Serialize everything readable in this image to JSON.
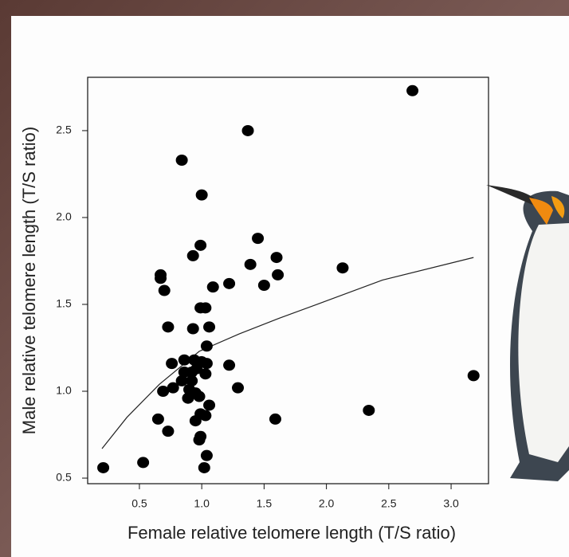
{
  "chart_data": {
    "type": "scatter",
    "xlabel": "Female relative telomere length (T/S ratio)",
    "ylabel": "Male relative telomere length (T/S ratio)",
    "xlim": [
      0.085,
      3.3
    ],
    "ylim": [
      0.468,
      2.807
    ],
    "xticks": [
      0.5,
      {
        "value": 1,
        "label": "1.0"
      },
      1.5,
      {
        "value": 2,
        "label": "2.0"
      },
      2.5,
      {
        "value": 3,
        "label": "3.0"
      }
    ],
    "yticks": [
      0.5,
      {
        "value": 1,
        "label": "1.0"
      },
      1.5,
      {
        "value": 2,
        "label": "2.0"
      },
      2.5
    ],
    "point_color": "#000000",
    "curve_color": "#222222",
    "points": {
      "x": [
        0.21,
        0.53,
        2.69,
        1.37,
        0.84,
        1.0,
        1.45,
        0.99,
        0.93,
        1.6,
        1.39,
        2.13,
        0.67,
        1.61,
        0.67,
        1.22,
        1.5,
        1.09,
        0.7,
        0.99,
        1.03,
        0.73,
        0.93,
        1.06,
        1.04,
        0.86,
        0.94,
        0.76,
        1.0,
        1.04,
        1.22,
        0.86,
        0.92,
        0.96,
        1.03,
        0.84,
        0.92,
        3.18,
        0.77,
        1.29,
        0.69,
        0.9,
        0.95,
        0.89,
        0.98,
        1.06,
        2.34,
        0.99,
        1.03,
        0.65,
        1.59,
        0.95,
        0.73,
        0.99,
        0.98,
        1.04,
        1.02
      ],
      "y": [
        0.56,
        0.59,
        2.73,
        2.5,
        2.33,
        2.13,
        1.88,
        1.84,
        1.78,
        1.77,
        1.73,
        1.71,
        1.67,
        1.67,
        1.65,
        1.62,
        1.61,
        1.6,
        1.58,
        1.48,
        1.48,
        1.37,
        1.36,
        1.37,
        1.26,
        1.18,
        1.18,
        1.16,
        1.17,
        1.16,
        1.15,
        1.11,
        1.11,
        1.13,
        1.1,
        1.06,
        1.06,
        1.09,
        1.02,
        1.02,
        1.0,
        1.01,
        0.99,
        0.96,
        0.97,
        0.92,
        0.89,
        0.87,
        0.86,
        0.84,
        0.84,
        0.83,
        0.77,
        0.74,
        0.72,
        0.63,
        0.56
      ]
    },
    "curve": {
      "x": [
        0.2,
        0.4,
        0.66,
        0.98,
        1.3,
        1.62,
        2.0,
        2.45,
        3.18
      ],
      "y": [
        0.67,
        0.85,
        1.04,
        1.23,
        1.33,
        1.42,
        1.52,
        1.64,
        1.77
      ]
    }
  }
}
